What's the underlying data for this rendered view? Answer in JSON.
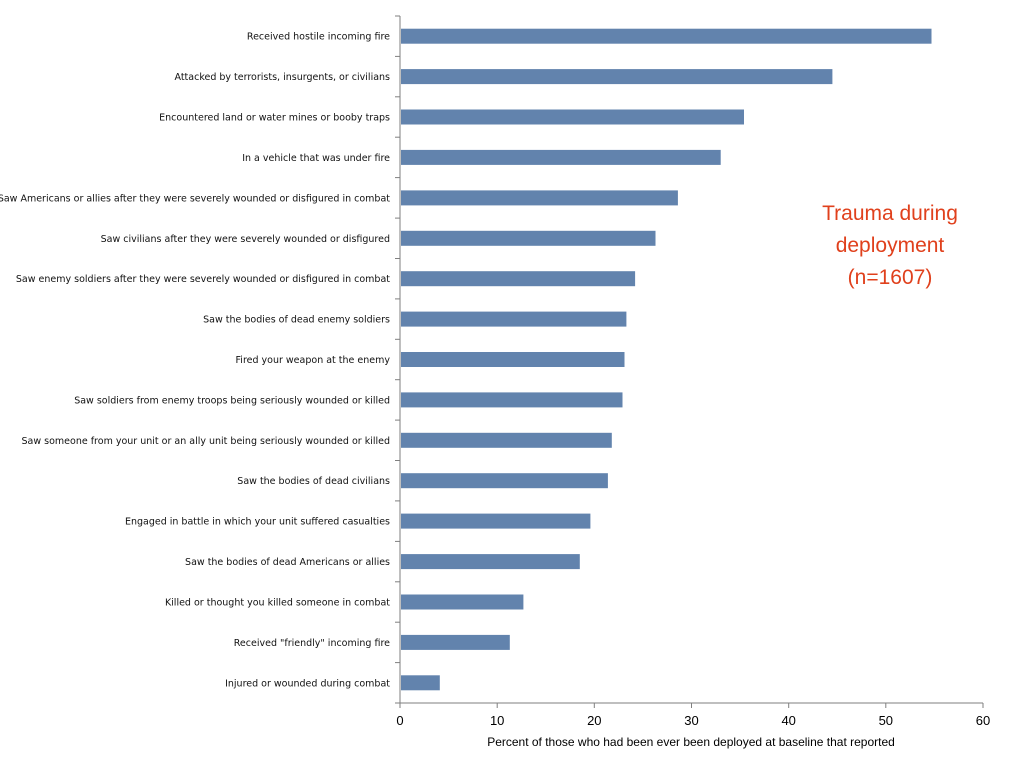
{
  "chart_data": {
    "type": "bar",
    "orientation": "horizontal",
    "categories": [
      "Received hostile incoming fire",
      "Attacked by terrorists, insurgents, or civilians",
      "Encountered land or water mines or booby traps",
      "In a vehicle that was under fire",
      "Saw Americans or allies after they were severely wounded or disfigured in combat",
      "Saw civilians after they were severely wounded or disfigured",
      "Saw enemy soldiers after they were severely wounded or disfigured in combat",
      "Saw the bodies of dead enemy soldiers",
      "Fired your weapon at the enemy",
      "Saw soldiers from enemy troops being seriously wounded or killed",
      "Saw someone from your unit or an ally unit being seriously wounded or killed",
      "Saw the bodies of dead civilians",
      "Engaged in battle in which your unit suffered casualties",
      "Saw the bodies of dead Americans or allies",
      "Killed or thought you killed someone in combat",
      "Received \"friendly\" incoming fire",
      "Injured or wounded during combat"
    ],
    "values": [
      54.7,
      44.5,
      35.4,
      33.0,
      28.6,
      26.3,
      24.2,
      23.3,
      23.1,
      22.9,
      21.8,
      21.4,
      19.6,
      18.5,
      12.7,
      11.3,
      4.1
    ],
    "xlabel": "Percent of those who had been ever been deployed at baseline that reported",
    "ylabel": "",
    "xlim": [
      0,
      60
    ],
    "xticks": [
      "0",
      "10",
      "20",
      "30",
      "40",
      "50",
      "60"
    ],
    "grid": false,
    "bar_color": "#6283ad",
    "annotation": {
      "lines": [
        "Trauma during",
        "deployment",
        "(n=1607)"
      ],
      "color": "#e0401c"
    }
  }
}
